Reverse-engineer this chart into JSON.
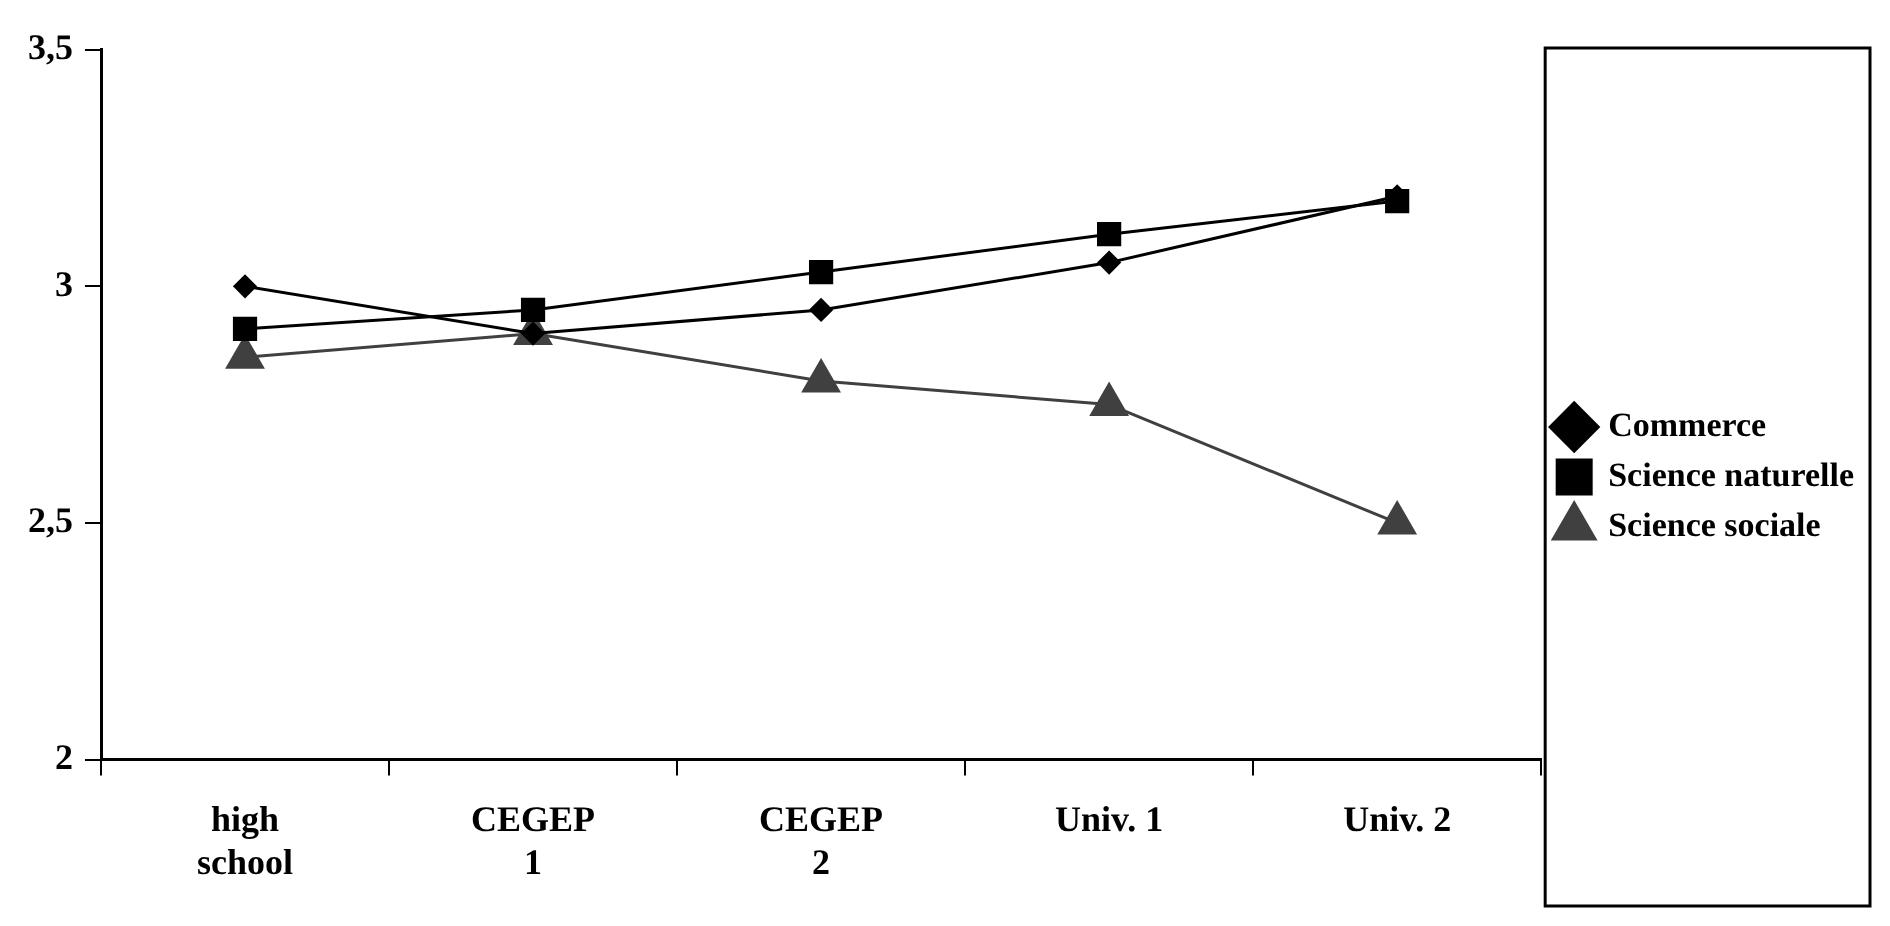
{
  "chart_data": {
    "type": "line",
    "categories": [
      "high school",
      "CEGEP 1",
      "CEGEP 2",
      "Univ. 1",
      "Univ. 2"
    ],
    "series": [
      {
        "name": "Commerce",
        "color": "#000000",
        "marker": "diamond",
        "values": [
          3.0,
          2.9,
          2.95,
          3.05,
          3.19
        ]
      },
      {
        "name": "Science naturelle",
        "color": "#000000",
        "marker": "square",
        "values": [
          2.91,
          2.95,
          3.03,
          3.11,
          3.18
        ]
      },
      {
        "name": "Science sociale",
        "color": "#404040",
        "marker": "triangle",
        "values": [
          2.85,
          2.9,
          2.8,
          2.75,
          2.5
        ]
      }
    ],
    "ylim": [
      2,
      3.5
    ],
    "yticks": [
      2,
      {
        "value": 2.5,
        "label": "2,5"
      },
      3,
      {
        "value": 3.5,
        "label": "3,5"
      }
    ],
    "grid": false,
    "legend": "right",
    "line_style": "solid"
  }
}
